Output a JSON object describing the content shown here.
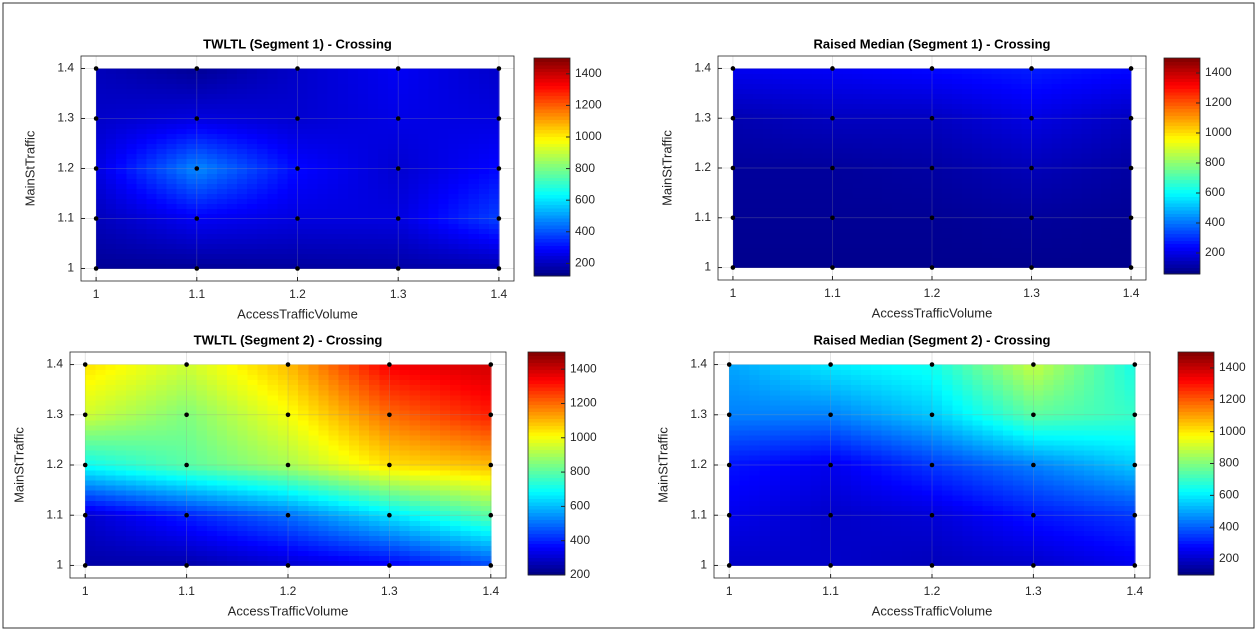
{
  "chart_data": [
    {
      "type": "contour",
      "title": "TWLTL (Segment 1) - Crossing",
      "xlabel": "AccessTrafficVolume",
      "ylabel": "MainStTraffic",
      "x": [
        1,
        1.1,
        1.2,
        1.3,
        1.4
      ],
      "y": [
        1,
        1.1,
        1.2,
        1.3,
        1.4
      ],
      "z": [
        [
          150,
          150,
          160,
          170,
          180
        ],
        [
          200,
          280,
          250,
          250,
          380
        ],
        [
          250,
          480,
          300,
          230,
          300
        ],
        [
          220,
          250,
          230,
          260,
          250
        ],
        [
          200,
          150,
          220,
          280,
          220
        ]
      ],
      "xlim": [
        0.985,
        1.415
      ],
      "ylim": [
        0.975,
        1.425
      ],
      "xticks": [
        1,
        1.1,
        1.2,
        1.3,
        1.4
      ],
      "yticks": [
        1,
        1.1,
        1.2,
        1.3,
        1.4
      ],
      "clim": [
        120,
        1500
      ],
      "cticks": [
        200,
        400,
        600,
        800,
        1000,
        1200,
        1400
      ],
      "colormap": "jet",
      "grid": true
    },
    {
      "type": "contour",
      "title": "Raised Median (Segment 1) - Crossing",
      "xlabel": "AccessTrafficVolume",
      "ylabel": "MainStTraffic",
      "x": [
        1,
        1.1,
        1.2,
        1.3,
        1.4
      ],
      "y": [
        1,
        1.1,
        1.2,
        1.3,
        1.4
      ],
      "z": [
        [
          80,
          80,
          80,
          80,
          80
        ],
        [
          90,
          90,
          90,
          100,
          90
        ],
        [
          100,
          100,
          110,
          140,
          110
        ],
        [
          130,
          150,
          150,
          200,
          150
        ],
        [
          220,
          230,
          250,
          280,
          250
        ]
      ],
      "xlim": [
        0.985,
        1.415
      ],
      "ylim": [
        0.975,
        1.425
      ],
      "xticks": [
        1,
        1.1,
        1.2,
        1.3,
        1.4
      ],
      "yticks": [
        1,
        1.1,
        1.2,
        1.3,
        1.4
      ],
      "clim": [
        60,
        1500
      ],
      "cticks": [
        200,
        400,
        600,
        800,
        1000,
        1200,
        1400
      ],
      "colormap": "jet",
      "grid": true
    },
    {
      "type": "contour",
      "title": "TWLTL (Segment 2) - Crossing",
      "xlabel": "AccessTrafficVolume",
      "ylabel": "MainStTraffic",
      "x": [
        1,
        1.1,
        1.2,
        1.3,
        1.4
      ],
      "y": [
        1,
        1.1,
        1.2,
        1.3,
        1.4
      ],
      "z": [
        [
          250,
          250,
          300,
          350,
          450
        ],
        [
          300,
          400,
          500,
          650,
          800
        ],
        [
          700,
          800,
          900,
          1050,
          1100
        ],
        [
          950,
          850,
          1000,
          1200,
          1300
        ],
        [
          1050,
          950,
          1100,
          1350,
          1400
        ]
      ],
      "xlim": [
        0.985,
        1.415
      ],
      "ylim": [
        0.975,
        1.425
      ],
      "xticks": [
        1,
        1.1,
        1.2,
        1.3,
        1.4
      ],
      "yticks": [
        1,
        1.1,
        1.2,
        1.3,
        1.4
      ],
      "clim": [
        200,
        1500
      ],
      "cticks": [
        200,
        400,
        600,
        800,
        1000,
        1200,
        1400
      ],
      "colormap": "jet",
      "grid": true
    },
    {
      "type": "contour",
      "title": "Raised Median (Segment 2) - Crossing",
      "xlabel": "AccessTrafficVolume",
      "ylabel": "MainStTraffic",
      "x": [
        1,
        1.1,
        1.2,
        1.3,
        1.4
      ],
      "y": [
        1,
        1.1,
        1.2,
        1.3,
        1.4
      ],
      "z": [
        [
          200,
          200,
          180,
          200,
          250
        ],
        [
          250,
          200,
          220,
          300,
          350
        ],
        [
          300,
          250,
          350,
          450,
          550
        ],
        [
          450,
          450,
          550,
          750,
          700
        ],
        [
          500,
          600,
          650,
          900,
          650
        ]
      ],
      "xlim": [
        0.985,
        1.415
      ],
      "ylim": [
        0.975,
        1.425
      ],
      "xticks": [
        1,
        1.1,
        1.2,
        1.3,
        1.4
      ],
      "yticks": [
        1,
        1.1,
        1.2,
        1.3,
        1.4
      ],
      "clim": [
        100,
        1500
      ],
      "cticks": [
        200,
        400,
        600,
        800,
        1000,
        1200,
        1400
      ],
      "colormap": "jet",
      "grid": true
    }
  ]
}
